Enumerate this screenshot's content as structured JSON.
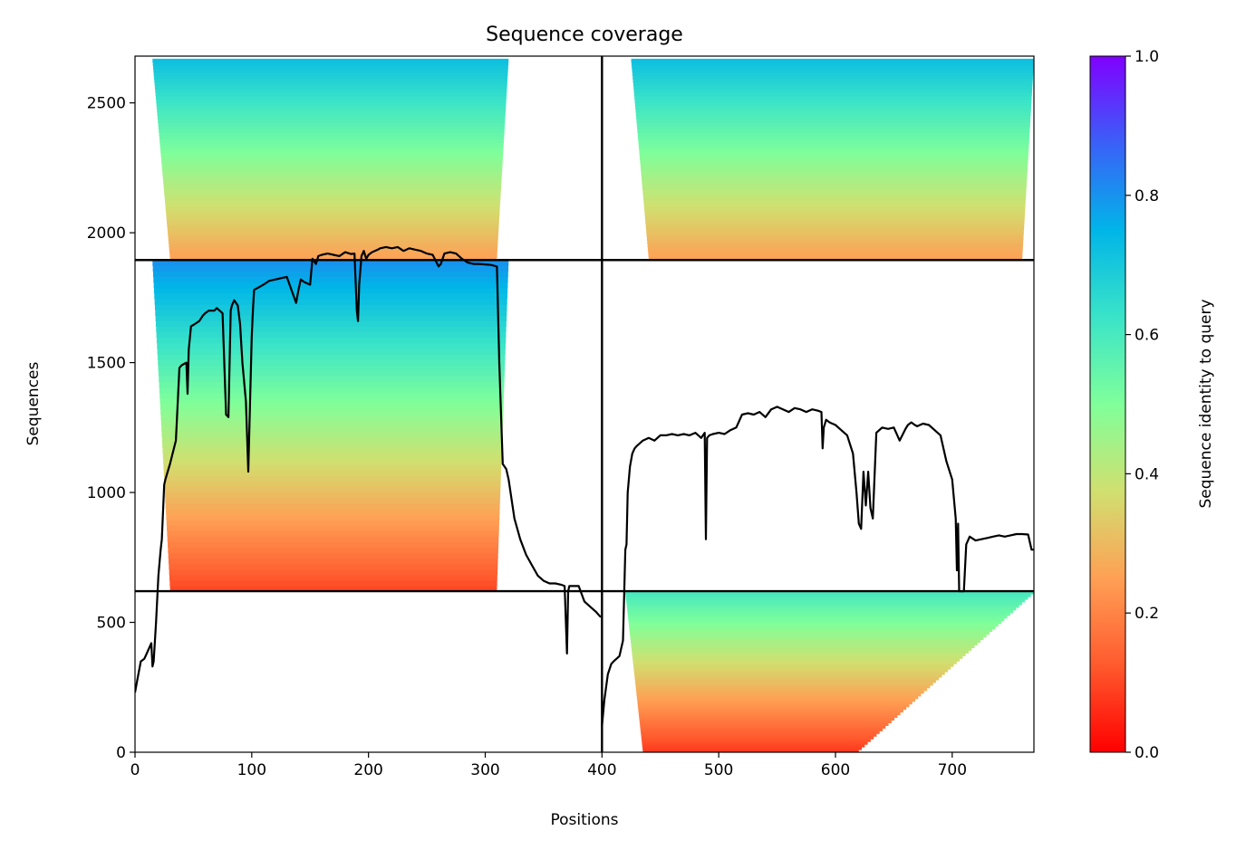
{
  "chart_data": {
    "type": "heatmap",
    "title": "Sequence coverage",
    "xlabel": "Positions",
    "ylabel": "Sequences",
    "xlim": [
      0,
      770
    ],
    "ylim": [
      0,
      2680
    ],
    "x_ticks": [
      0,
      100,
      200,
      300,
      400,
      500,
      600,
      700
    ],
    "y_ticks": [
      0,
      500,
      1000,
      1500,
      2000,
      2500
    ],
    "colorbar": {
      "label": "Sequence identity to query",
      "colormap": "rainbow_r",
      "range": [
        0,
        1
      ],
      "ticks": [
        "0.0",
        "0.2",
        "0.4",
        "0.6",
        "0.8",
        "1.0"
      ]
    },
    "grid": false,
    "block_boundaries": {
      "x": [
        400
      ],
      "y": [
        620,
        1895
      ]
    },
    "blocks": [
      {
        "x_range": [
          0,
          400
        ],
        "y_range": [
          1895,
          2670
        ],
        "coverage_x": [
          15,
          320
        ],
        "identity_bottom": 0.25,
        "identity_top": 0.72
      },
      {
        "x_range": [
          400,
          770
        ],
        "y_range": [
          1895,
          2670
        ],
        "coverage_x": [
          425,
          770
        ],
        "identity_bottom": 0.25,
        "identity_top": 0.72
      },
      {
        "x_range": [
          0,
          400
        ],
        "y_range": [
          620,
          1895
        ],
        "coverage_x": [
          15,
          320
        ],
        "identity_bottom": 0.1,
        "identity_top": 0.8
      },
      {
        "x_range": [
          400,
          770
        ],
        "y_range": [
          0,
          620
        ],
        "coverage_x": [
          420,
          770
        ],
        "identity_bottom": 0.08,
        "identity_top": 0.6
      }
    ],
    "coverage_series": [
      {
        "x": [
          0,
          2,
          5,
          8,
          10,
          14,
          15,
          16,
          18,
          20,
          22,
          23,
          25,
          26,
          30,
          35,
          38,
          40,
          42,
          44,
          45,
          46,
          48,
          50,
          55,
          58,
          60,
          63,
          68,
          70,
          75,
          78,
          80,
          82,
          83,
          84,
          85,
          88,
          90,
          92,
          95,
          97,
          100,
          101,
          102,
          104,
          106,
          108,
          110,
          115,
          120,
          125,
          130,
          138,
          140,
          142,
          145,
          150,
          152,
          155,
          157,
          160,
          165,
          170,
          175,
          180,
          185,
          188,
          190,
          191,
          192,
          194,
          196,
          198,
          200,
          203,
          208,
          210,
          215,
          220,
          225,
          230,
          235,
          240,
          245,
          250,
          255,
          260,
          262,
          265,
          270,
          275,
          280,
          285,
          290,
          295,
          300,
          305,
          310,
          312,
          315,
          318,
          320,
          325,
          330,
          335,
          340,
          345,
          350,
          355,
          360,
          365,
          368,
          370,
          371,
          372,
          375,
          380,
          385,
          390,
          395,
          399
        ],
        "y": [
          230,
          280,
          350,
          360,
          380,
          420,
          330,
          350,
          500,
          680,
          780,
          820,
          1030,
          1050,
          1110,
          1200,
          1480,
          1490,
          1495,
          1500,
          1380,
          1550,
          1640,
          1645,
          1660,
          1680,
          1690,
          1700,
          1700,
          1710,
          1690,
          1300,
          1290,
          1700,
          1720,
          1730,
          1740,
          1720,
          1650,
          1500,
          1350,
          1080,
          1600,
          1700,
          1780,
          1785,
          1790,
          1795,
          1800,
          1815,
          1820,
          1825,
          1830,
          1730,
          1780,
          1820,
          1810,
          1800,
          1900,
          1880,
          1910,
          1915,
          1920,
          1915,
          1910,
          1925,
          1918,
          1920,
          1700,
          1660,
          1800,
          1910,
          1930,
          1900,
          1915,
          1925,
          1935,
          1940,
          1945,
          1940,
          1945,
          1930,
          1940,
          1935,
          1930,
          1920,
          1915,
          1870,
          1880,
          1920,
          1925,
          1920,
          1900,
          1885,
          1880,
          1880,
          1878,
          1876,
          1870,
          1500,
          1110,
          1090,
          1050,
          900,
          820,
          760,
          720,
          680,
          660,
          650,
          650,
          645,
          640,
          380,
          620,
          640,
          640,
          640,
          580,
          560,
          540,
          520
        ]
      },
      {
        "x": [
          400,
          402,
          405,
          408,
          410,
          415,
          418,
          420,
          421,
          422,
          424,
          426,
          428,
          430,
          435,
          440,
          445,
          450,
          455,
          460,
          465,
          470,
          475,
          480,
          485,
          488,
          489,
          490,
          492,
          495,
          500,
          505,
          510,
          515,
          520,
          525,
          530,
          535,
          540,
          545,
          550,
          555,
          560,
          565,
          570,
          575,
          580,
          585,
          588,
          589,
          590,
          592,
          595,
          600,
          605,
          610,
          615,
          618,
          620,
          622,
          624,
          626,
          628,
          630,
          632,
          635,
          640,
          645,
          650,
          655,
          660,
          662,
          665,
          668,
          670,
          675,
          680,
          685,
          690,
          695,
          700,
          702,
          703,
          704,
          705,
          706,
          708,
          710,
          712,
          715,
          720,
          725,
          730,
          735,
          740,
          745,
          750,
          755,
          760,
          765,
          768,
          770
        ],
        "y": [
          100,
          200,
          300,
          340,
          350,
          370,
          430,
          780,
          800,
          1000,
          1100,
          1150,
          1170,
          1180,
          1200,
          1210,
          1200,
          1220,
          1220,
          1225,
          1220,
          1225,
          1220,
          1230,
          1210,
          1230,
          820,
          1210,
          1220,
          1225,
          1230,
          1225,
          1240,
          1250,
          1300,
          1305,
          1300,
          1310,
          1290,
          1320,
          1330,
          1320,
          1310,
          1325,
          1320,
          1310,
          1320,
          1315,
          1310,
          1170,
          1250,
          1280,
          1270,
          1260,
          1240,
          1220,
          1150,
          1000,
          880,
          860,
          1080,
          950,
          1080,
          940,
          900,
          1230,
          1250,
          1245,
          1250,
          1200,
          1245,
          1260,
          1270,
          1260,
          1255,
          1265,
          1260,
          1240,
          1220,
          1120,
          1050,
          950,
          900,
          700,
          880,
          620,
          620,
          620,
          800,
          830,
          815,
          820,
          825,
          830,
          835,
          830,
          835,
          840,
          840,
          838,
          780,
          780
        ]
      }
    ]
  }
}
